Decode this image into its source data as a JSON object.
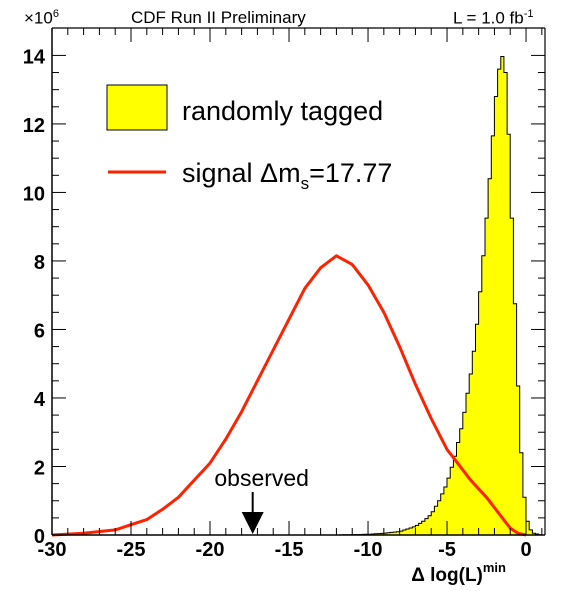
{
  "header": {
    "scale_base": "×10",
    "scale_exp": "6",
    "title": "CDF Run II Preliminary",
    "lumi_prefix": "L = 1.0 fb",
    "lumi_exp": "-1"
  },
  "xaxis": {
    "label_main": "Δ log(L)",
    "label_sup": "min",
    "ticks": [
      -30,
      -25,
      -20,
      -15,
      -10,
      -5,
      0
    ]
  },
  "yaxis": {
    "ticks": [
      0,
      2,
      4,
      6,
      8,
      10,
      12,
      14
    ]
  },
  "legend": {
    "entries": [
      {
        "label": "randomly tagged",
        "kind": "fill"
      },
      {
        "label_pre": "signal Δm",
        "label_sub": "s",
        "label_post": "=17.77",
        "kind": "line"
      }
    ]
  },
  "annotation": {
    "text": "observed",
    "x": -17.3
  },
  "colors": {
    "histogram_fill": "#ffff00",
    "signal_line": "#ff2200",
    "axis": "#000000"
  },
  "chart_data": {
    "type": "area",
    "xlim": [
      -30,
      1.2
    ],
    "ylim": [
      0,
      14.8
    ],
    "y_scale_factor": "×10^6",
    "series": [
      {
        "name": "randomly tagged",
        "style": "histogram",
        "x": [
          -12,
          -10,
          -9,
          -8,
          -7,
          -6.5,
          -6,
          -5.5,
          -5,
          -4.5,
          -4,
          -3.5,
          -3.2,
          -3,
          -2.8,
          -2.6,
          -2.4,
          -2.2,
          -2,
          -1.8,
          -1.6,
          -1.45,
          -1.3,
          -1.15,
          -1,
          -0.8,
          -0.6,
          -0.4,
          -0.2,
          0,
          0.2,
          0.5,
          1
        ],
        "values": [
          0,
          0.02,
          0.05,
          0.1,
          0.25,
          0.4,
          0.6,
          1.0,
          1.5,
          2.3,
          3.3,
          4.7,
          5.7,
          6.6,
          7.6,
          8.7,
          9.8,
          11.0,
          12.3,
          13.3,
          13.9,
          14.0,
          13.5,
          12.3,
          10.5,
          8.0,
          5.5,
          3.2,
          1.6,
          0.6,
          0.2,
          0.05,
          0
        ]
      },
      {
        "name": "signal Δms=17.77",
        "style": "line",
        "x": [
          -30,
          -28,
          -26,
          -25,
          -24,
          -23,
          -22,
          -21,
          -20,
          -19,
          -18,
          -17,
          -16,
          -15,
          -14,
          -13,
          -12,
          -11,
          -10,
          -9,
          -8,
          -7,
          -6,
          -5,
          -4.5,
          -4,
          -3.5,
          -3,
          -2.5,
          -2,
          -1.5,
          -1,
          -0.5,
          0
        ],
        "values": [
          0,
          0.05,
          0.15,
          0.3,
          0.45,
          0.75,
          1.1,
          1.6,
          2.1,
          2.8,
          3.6,
          4.5,
          5.4,
          6.3,
          7.2,
          7.8,
          8.15,
          7.9,
          7.3,
          6.5,
          5.5,
          4.4,
          3.4,
          2.5,
          2.2,
          1.9,
          1.6,
          1.35,
          1.1,
          0.8,
          0.5,
          0.2,
          0.05,
          0
        ]
      }
    ]
  }
}
